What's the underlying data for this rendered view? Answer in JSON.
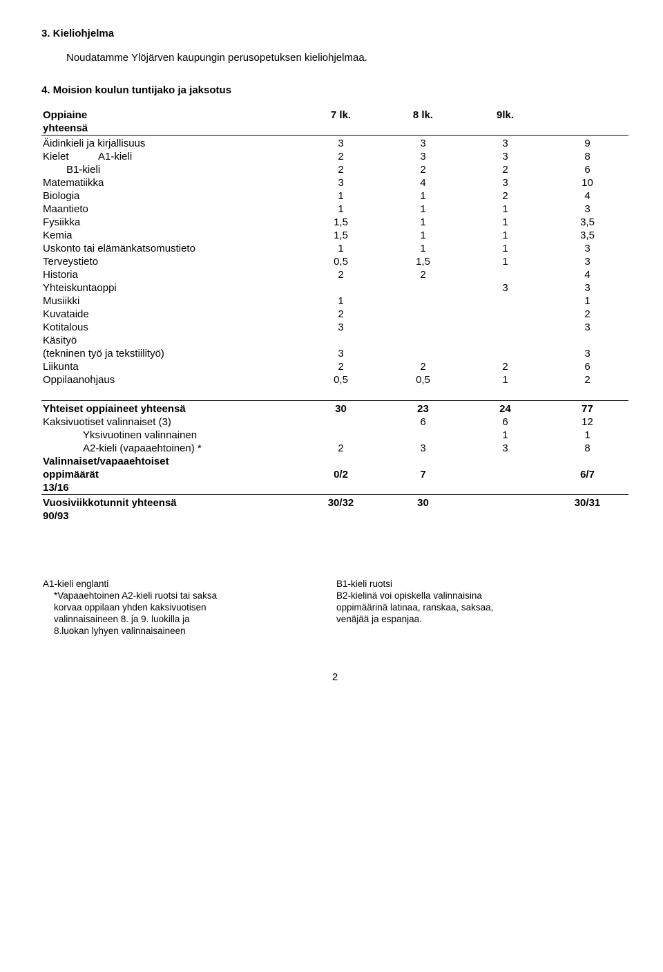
{
  "section3": {
    "heading": "3. Kieliohjelma",
    "intro": "Noudatamme Ylöjärven kaupungin perusopetuksen kieliohjelmaa."
  },
  "section4": {
    "heading": "4. Moision koulun tuntijako ja jaksotus",
    "header": {
      "label": "Oppiaine",
      "c1": "7 lk.",
      "c2": "8 lk.",
      "c3": "9lk."
    },
    "yhteensa_label": "yhteensä",
    "rows": [
      {
        "label": "Äidinkieli ja kirjallisuus",
        "c1": "3",
        "c2": "3",
        "c3": "3",
        "c4": "9",
        "indent": 0,
        "bold": false
      },
      {
        "label": "Kielet",
        "sub": "A1-kieli",
        "c1": "2",
        "c2": "3",
        "c3": "3",
        "c4": "8",
        "indent": 0,
        "bold": false
      },
      {
        "label": "B1-kieli",
        "c1": "2",
        "c2": "2",
        "c3": "2",
        "c4": "6",
        "indent": 1,
        "bold": false
      },
      {
        "label": "Matematiikka",
        "c1": "3",
        "c2": "4",
        "c3": "3",
        "c4": "10",
        "indent": 0,
        "bold": false
      },
      {
        "label": "Biologia",
        "c1": "1",
        "c2": "1",
        "c3": "2",
        "c4": "4",
        "indent": 0,
        "bold": false
      },
      {
        "label": "Maantieto",
        "c1": "1",
        "c2": "1",
        "c3": "1",
        "c4": "3",
        "indent": 0,
        "bold": false
      },
      {
        "label": "Fysiikka",
        "c1": "1,5",
        "c2": "1",
        "c3": "1",
        "c4": "3,5",
        "indent": 0,
        "bold": false
      },
      {
        "label": "Kemia",
        "c1": "1,5",
        "c2": "1",
        "c3": "1",
        "c4": "3,5",
        "indent": 0,
        "bold": false
      },
      {
        "label": "Uskonto tai elämänkatsomustieto",
        "c1": "1",
        "c2": "1",
        "c3": "1",
        "c4": "3",
        "indent": 0,
        "bold": false
      },
      {
        "label": "Terveystieto",
        "c1": "0,5",
        "c2": "1,5",
        "c3": "1",
        "c4": "3",
        "indent": 0,
        "bold": false
      },
      {
        "label": "Historia",
        "c1": "2",
        "c2": "2",
        "c3": "",
        "c4": "4",
        "indent": 0,
        "bold": false
      },
      {
        "label": "Yhteiskuntaoppi",
        "c1": "",
        "c2": "",
        "c3": "3",
        "c4": "3",
        "indent": 0,
        "bold": false
      },
      {
        "label": "Musiikki",
        "c1": "1",
        "c2": "",
        "c3": "",
        "c4": "1",
        "indent": 0,
        "bold": false
      },
      {
        "label": "Kuvataide",
        "c1": "2",
        "c2": "",
        "c3": "",
        "c4": "2",
        "indent": 0,
        "bold": false
      },
      {
        "label": "Kotitalous",
        "c1": "3",
        "c2": "",
        "c3": "",
        "c4": "3",
        "indent": 0,
        "bold": false
      },
      {
        "label": "Käsityö",
        "c1": "",
        "c2": "",
        "c3": "",
        "c4": "",
        "indent": 0,
        "bold": false
      },
      {
        "label": "(tekninen työ ja tekstiilityö)",
        "c1": "3",
        "c2": "",
        "c3": "",
        "c4": "3",
        "indent": 0,
        "bold": false
      },
      {
        "label": "Liikunta",
        "c1": "2",
        "c2": "2",
        "c3": "2",
        "c4": "6",
        "indent": 0,
        "bold": false
      },
      {
        "label": "Oppilaanohjaus",
        "c1": "0,5",
        "c2": "0,5",
        "c3": "1",
        "c4": "2",
        "indent": 0,
        "bold": false
      }
    ],
    "totals": [
      {
        "label": "Yhteiset oppiaineet yhteensä",
        "c1": "30",
        "c2": "23",
        "c3": "24",
        "c4": "77",
        "indent": 0,
        "bold": true
      },
      {
        "label": "Kaksivuotiset valinnaiset  (3)",
        "c1": "",
        "c2": "6",
        "c3": "6",
        "c4": "12",
        "indent": 0,
        "bold": false
      },
      {
        "label": "Yksivuotinen valinnainen",
        "c1": "",
        "c2": "",
        "c3": "1",
        "c4": "1",
        "indent": 2,
        "bold": false
      },
      {
        "label": "A2-kieli (vapaaehtoinen) *",
        "c1": "2",
        "c2": "3",
        "c3": "3",
        "c4": "8",
        "indent": 2,
        "bold": false
      }
    ],
    "vapaa": {
      "label1": "Valinnaiset/vapaaehtoiset",
      "label2": " oppimäärät",
      "c1": "0/2",
      "c2": "7",
      "c4": "6/7",
      "cont": "13/16"
    },
    "vuosi": {
      "label": "Vuosiviikkotunnit yhteensä",
      "c1": "30/32",
      "c2": "30",
      "c4": "30/31",
      "cont": "90/93"
    }
  },
  "footnotes": {
    "left": [
      "A1-kieli  englanti",
      "*Vapaaehtoinen A2-kieli ruotsi tai saksa",
      " korvaa oppilaan yhden kaksivuotisen",
      " valinnaisaineen 8. ja 9. luokilla  ja",
      " 8.luokan lyhyen valinnaisaineen"
    ],
    "right": [
      "B1-kieli ruotsi",
      "B2-kielinä voi opiskella valinnaisina",
      " oppimäärinä latinaa, ranskaa, saksaa,",
      " venäjää ja espanjaa."
    ]
  },
  "page_number": "2"
}
